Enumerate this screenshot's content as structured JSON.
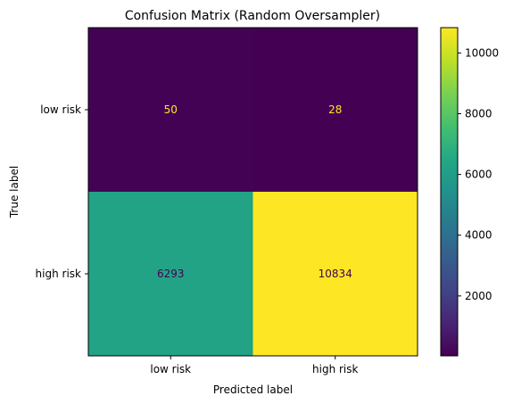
{
  "chart_data": {
    "type": "heatmap",
    "title": "Confusion Matrix (Random Oversampler)",
    "xlabel": "Predicted label",
    "ylabel": "True label",
    "x_categories": [
      "low risk",
      "high risk"
    ],
    "y_categories": [
      "low risk",
      "high risk"
    ],
    "values": [
      [
        50,
        28
      ],
      [
        6293,
        10834
      ]
    ],
    "colormap": "viridis",
    "colorbar": {
      "min": 28,
      "max": 10834,
      "ticks": [
        2000,
        4000,
        6000,
        8000,
        10000
      ]
    },
    "text_colors": {
      "on_dark": "#fde725",
      "on_light": "#440154"
    }
  }
}
